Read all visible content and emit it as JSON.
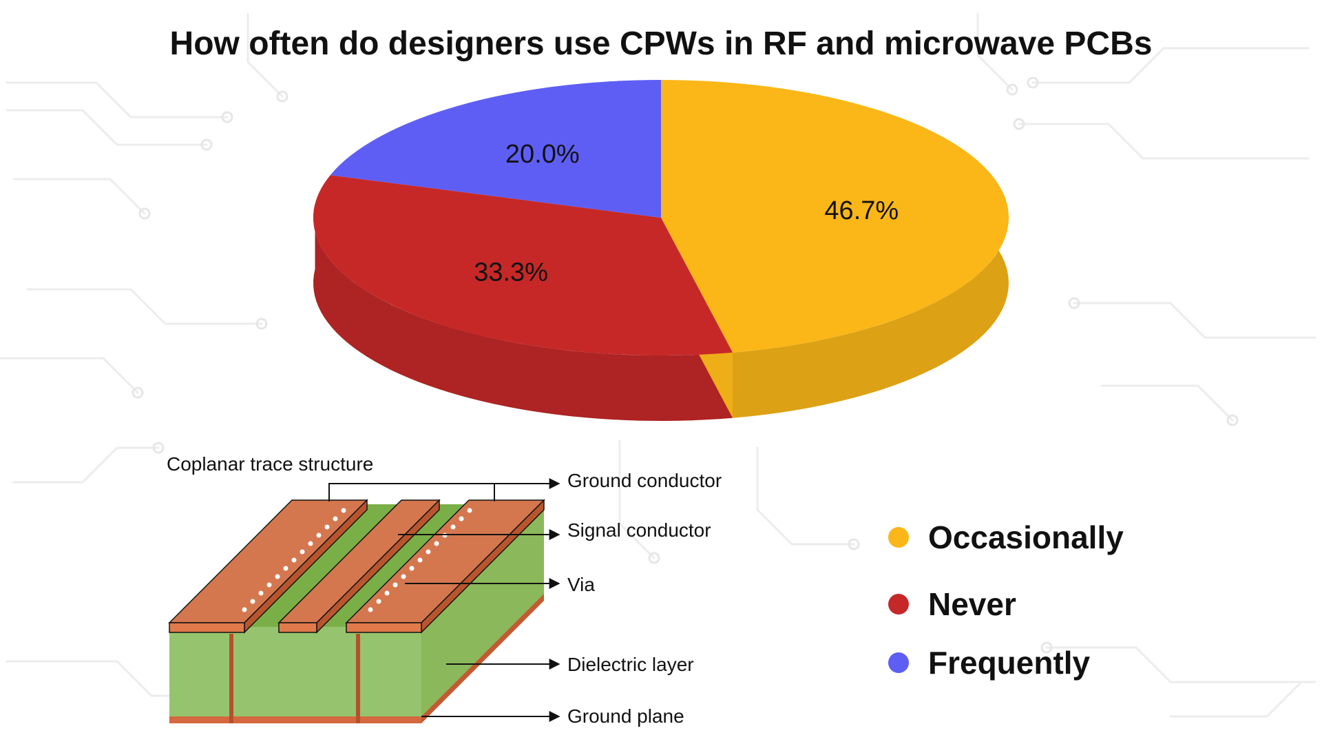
{
  "title": "How often do designers use CPWs in RF and microwave PCBs",
  "chart_data": {
    "type": "pie",
    "title": "How often do designers use CPWs in RF and microwave PCBs",
    "categories": [
      "Occasionally",
      "Never",
      "Frequently"
    ],
    "values": [
      46.7,
      33.3,
      20.0
    ],
    "labels": [
      "46.7%",
      "33.3%",
      "20.0%"
    ],
    "colors": [
      "#FBB718",
      "#C62828",
      "#5E5EF5"
    ],
    "style": "3d",
    "legend_position": "right"
  },
  "diagram": {
    "title": "Coplanar trace structure",
    "labels": {
      "ground_conductor": "Ground conductor",
      "signal_conductor": "Signal conductor",
      "via": "Via",
      "dielectric_layer": "Dielectric layer",
      "ground_plane": "Ground plane"
    }
  },
  "legend": {
    "items": [
      {
        "label": "Occasionally",
        "color": "#FBB718"
      },
      {
        "label": "Never",
        "color": "#C62828"
      },
      {
        "label": "Frequently",
        "color": "#5E5EF5"
      }
    ]
  }
}
